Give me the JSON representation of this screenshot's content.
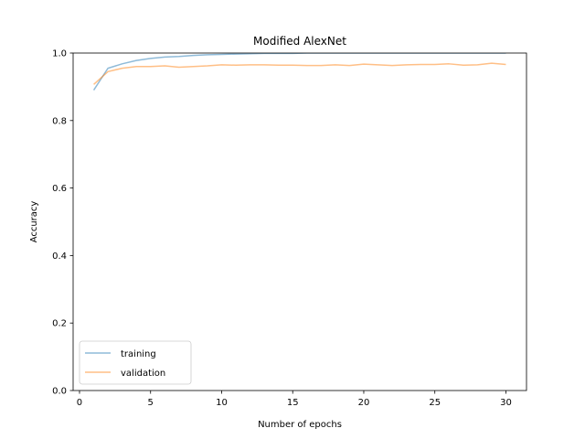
{
  "chart_data": {
    "type": "line",
    "title": "Modified AlexNet",
    "xlabel": "Number of epochs",
    "ylabel": "Accuracy",
    "xlim": [
      -0.45,
      31.45
    ],
    "ylim": [
      0.0,
      1.0
    ],
    "xticks": [
      0,
      5,
      10,
      15,
      20,
      25,
      30
    ],
    "xtick_labels": [
      "0",
      "5",
      "10",
      "15",
      "20",
      "25",
      "30"
    ],
    "yticks": [
      0.0,
      0.2,
      0.4,
      0.6,
      0.8,
      1.0
    ],
    "ytick_labels": [
      "0.0",
      "0.2",
      "0.4",
      "0.6",
      "0.8",
      "1.0"
    ],
    "grid": false,
    "legend_position": "lower-left",
    "x": [
      1,
      2,
      3,
      4,
      5,
      6,
      7,
      8,
      9,
      10,
      11,
      12,
      13,
      14,
      15,
      16,
      17,
      18,
      19,
      20,
      21,
      22,
      23,
      24,
      25,
      26,
      27,
      28,
      29,
      30
    ],
    "series": [
      {
        "name": "training",
        "color": "#1f77b4",
        "values": [
          0.89,
          0.955,
          0.968,
          0.978,
          0.984,
          0.988,
          0.99,
          0.993,
          0.995,
          0.996,
          0.997,
          0.998,
          0.999,
          0.999,
          0.999,
          1.0,
          1.0,
          1.0,
          1.0,
          1.0,
          1.0,
          1.0,
          1.0,
          1.0,
          1.0,
          1.0,
          1.0,
          1.0,
          1.0,
          1.0
        ]
      },
      {
        "name": "validation",
        "color": "#ff7f0e",
        "values": [
          0.907,
          0.945,
          0.955,
          0.96,
          0.96,
          0.962,
          0.958,
          0.96,
          0.962,
          0.965,
          0.964,
          0.965,
          0.965,
          0.964,
          0.964,
          0.963,
          0.963,
          0.965,
          0.963,
          0.967,
          0.965,
          0.963,
          0.965,
          0.966,
          0.966,
          0.968,
          0.964,
          0.965,
          0.97,
          0.966
        ]
      }
    ]
  }
}
